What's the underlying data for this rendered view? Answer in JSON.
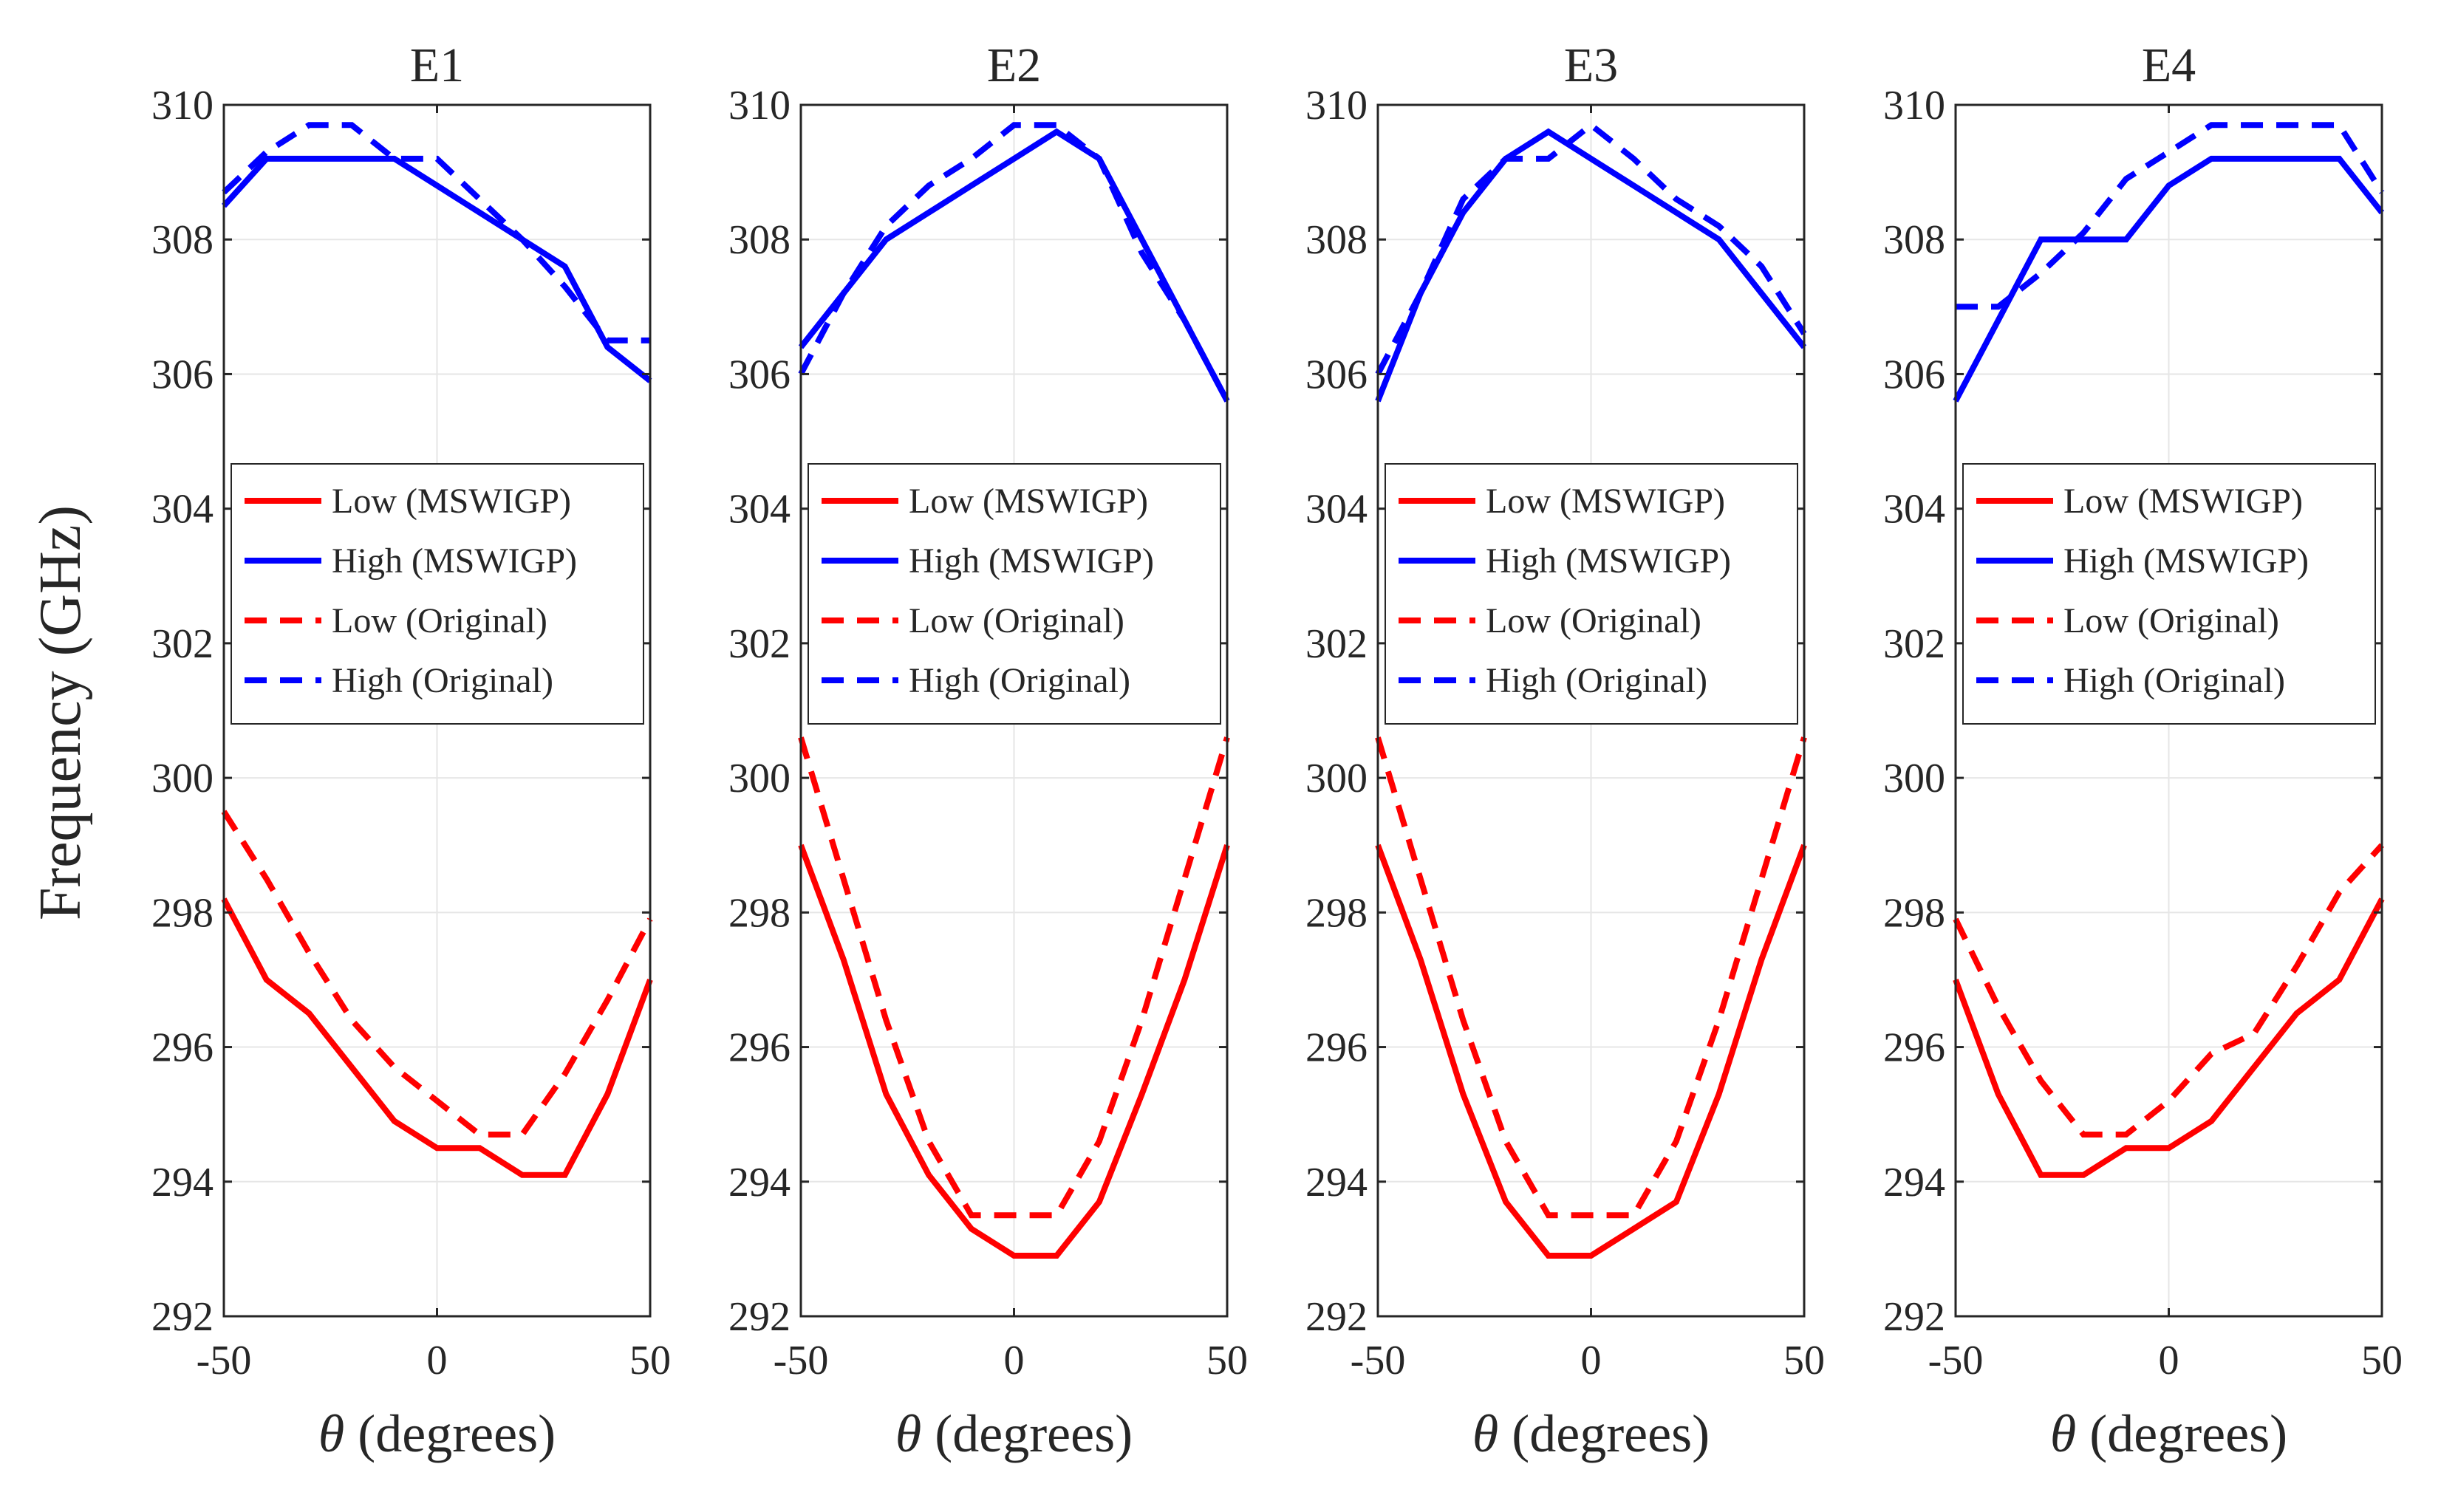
{
  "figure": {
    "ylabel": "Frequency (GHz)",
    "xlabel_symbol": "θ",
    "xlabel_text": " (degrees)"
  },
  "chart_data": [
    {
      "type": "line",
      "title": "E1",
      "xlabel": "θ (degrees)",
      "ylabel": "Frequency (GHz)",
      "xlim": [
        -50,
        50
      ],
      "ylim": [
        292,
        310
      ],
      "xticks": [
        "-50",
        "0",
        "50"
      ],
      "yticks": [
        "292",
        "294",
        "296",
        "298",
        "300",
        "302",
        "304",
        "306",
        "308",
        "310"
      ],
      "grid": true,
      "legend_position": "middle",
      "x": [
        -50,
        -40,
        -30,
        -20,
        -10,
        0,
        10,
        20,
        30,
        40,
        50
      ],
      "series": [
        {
          "name": "Low (MSWIGP)",
          "color": "#ff0000",
          "style": "solid",
          "values": [
            298.2,
            297.0,
            296.5,
            295.7,
            294.9,
            294.5,
            294.5,
            294.1,
            294.1,
            295.3,
            297.0
          ]
        },
        {
          "name": "High (MSWIGP)",
          "color": "#0000ff",
          "style": "solid",
          "values": [
            308.5,
            309.2,
            309.2,
            309.2,
            309.2,
            308.8,
            308.4,
            308.0,
            307.6,
            306.4,
            305.9
          ]
        },
        {
          "name": "Low (Original)",
          "color": "#ff0000",
          "style": "dashed",
          "values": [
            299.5,
            298.5,
            297.4,
            296.4,
            295.7,
            295.2,
            294.7,
            294.7,
            295.6,
            296.7,
            297.9
          ]
        },
        {
          "name": "High (Original)",
          "color": "#0000ff",
          "style": "dashed",
          "values": [
            308.7,
            309.3,
            309.7,
            309.7,
            309.2,
            309.2,
            308.6,
            308.0,
            307.3,
            306.5,
            306.5
          ]
        }
      ]
    },
    {
      "type": "line",
      "title": "E2",
      "xlabel": "θ (degrees)",
      "ylabel": "",
      "xlim": [
        -50,
        50
      ],
      "ylim": [
        292,
        310
      ],
      "xticks": [
        "-50",
        "0",
        "50"
      ],
      "yticks": [
        "292",
        "294",
        "296",
        "298",
        "300",
        "302",
        "304",
        "306",
        "308",
        "310"
      ],
      "grid": true,
      "legend_position": "middle",
      "x": [
        -50,
        -40,
        -30,
        -20,
        -10,
        0,
        10,
        20,
        30,
        40,
        50
      ],
      "series": [
        {
          "name": "Low (MSWIGP)",
          "color": "#ff0000",
          "style": "solid",
          "values": [
            299.0,
            297.3,
            295.3,
            294.1,
            293.3,
            292.9,
            292.9,
            293.7,
            295.3,
            297.0,
            299.0
          ]
        },
        {
          "name": "High (MSWIGP)",
          "color": "#0000ff",
          "style": "solid",
          "values": [
            306.4,
            307.2,
            308.0,
            308.4,
            308.8,
            309.2,
            309.6,
            309.2,
            308.0,
            306.8,
            305.6
          ]
        },
        {
          "name": "Low (Original)",
          "color": "#ff0000",
          "style": "dashed",
          "values": [
            300.6,
            298.5,
            296.4,
            294.6,
            293.5,
            293.5,
            293.5,
            294.6,
            296.4,
            298.5,
            300.6
          ]
        },
        {
          "name": "High (Original)",
          "color": "#0000ff",
          "style": "dashed",
          "values": [
            306.0,
            307.2,
            308.2,
            308.8,
            309.2,
            309.7,
            309.7,
            309.2,
            307.8,
            306.8,
            305.6
          ]
        }
      ]
    },
    {
      "type": "line",
      "title": "E3",
      "xlabel": "θ (degrees)",
      "ylabel": "",
      "xlim": [
        -50,
        50
      ],
      "ylim": [
        292,
        310
      ],
      "xticks": [
        "-50",
        "0",
        "50"
      ],
      "yticks": [
        "292",
        "294",
        "296",
        "298",
        "300",
        "302",
        "304",
        "306",
        "308",
        "310"
      ],
      "grid": true,
      "legend_position": "middle",
      "x": [
        -50,
        -40,
        -30,
        -20,
        -10,
        0,
        10,
        20,
        30,
        40,
        50
      ],
      "series": [
        {
          "name": "Low (MSWIGP)",
          "color": "#ff0000",
          "style": "solid",
          "values": [
            299.0,
            297.3,
            295.3,
            293.7,
            292.9,
            292.9,
            293.3,
            293.7,
            295.3,
            297.3,
            299.0
          ]
        },
        {
          "name": "High (MSWIGP)",
          "color": "#0000ff",
          "style": "solid",
          "values": [
            305.6,
            307.2,
            308.4,
            309.2,
            309.6,
            309.2,
            308.8,
            308.4,
            308.0,
            307.2,
            306.4
          ]
        },
        {
          "name": "Low (Original)",
          "color": "#ff0000",
          "style": "dashed",
          "values": [
            300.6,
            298.5,
            296.4,
            294.6,
            293.5,
            293.5,
            293.5,
            294.6,
            296.4,
            298.5,
            300.6
          ]
        },
        {
          "name": "High (Original)",
          "color": "#0000ff",
          "style": "dashed",
          "values": [
            306.0,
            307.2,
            308.6,
            309.2,
            309.2,
            309.7,
            309.2,
            308.6,
            308.2,
            307.6,
            306.6
          ]
        }
      ]
    },
    {
      "type": "line",
      "title": "E4",
      "xlabel": "θ (degrees)",
      "ylabel": "",
      "xlim": [
        -50,
        50
      ],
      "ylim": [
        292,
        310
      ],
      "xticks": [
        "-50",
        "0",
        "50"
      ],
      "yticks": [
        "292",
        "294",
        "296",
        "298",
        "300",
        "302",
        "304",
        "306",
        "308",
        "310"
      ],
      "grid": true,
      "legend_position": "middle",
      "x": [
        -50,
        -40,
        -30,
        -20,
        -10,
        0,
        10,
        20,
        30,
        40,
        50
      ],
      "series": [
        {
          "name": "Low (MSWIGP)",
          "color": "#ff0000",
          "style": "solid",
          "values": [
            297.0,
            295.3,
            294.1,
            294.1,
            294.5,
            294.5,
            294.9,
            295.7,
            296.5,
            297.0,
            298.2
          ]
        },
        {
          "name": "High (MSWIGP)",
          "color": "#0000ff",
          "style": "solid",
          "values": [
            305.6,
            306.8,
            308.0,
            308.0,
            308.0,
            308.8,
            309.2,
            309.2,
            309.2,
            309.2,
            308.4
          ]
        },
        {
          "name": "Low (Original)",
          "color": "#ff0000",
          "style": "dashed",
          "values": [
            297.9,
            296.6,
            295.5,
            294.7,
            294.7,
            295.2,
            295.9,
            296.2,
            297.2,
            298.3,
            299.0
          ]
        },
        {
          "name": "High (Original)",
          "color": "#0000ff",
          "style": "dashed",
          "values": [
            307.0,
            307.0,
            307.5,
            308.1,
            308.9,
            309.3,
            309.7,
            309.7,
            309.7,
            309.7,
            308.7
          ]
        }
      ]
    }
  ]
}
